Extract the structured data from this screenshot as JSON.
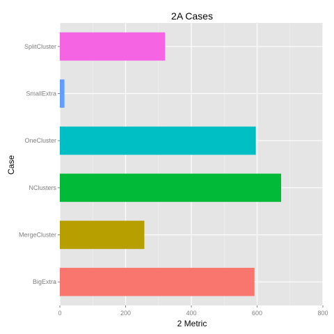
{
  "chart_data": {
    "type": "bar",
    "orientation": "horizontal",
    "title": "2A Cases",
    "xlabel": "2 Metric",
    "ylabel": "Case",
    "categories": [
      "BigExtra",
      "MergeCluster",
      "NClusters",
      "OneCluster",
      "SmallExtra",
      "SplitCluster"
    ],
    "values": [
      592,
      257,
      673,
      596,
      14,
      320
    ],
    "colors": [
      "#F8766D",
      "#B79F00",
      "#00BA38",
      "#00BFC4",
      "#619CFF",
      "#F564E3"
    ],
    "xlim": [
      0,
      800
    ],
    "xticks": [
      0,
      200,
      400,
      600,
      800
    ],
    "grid": true,
    "legend": "none"
  }
}
